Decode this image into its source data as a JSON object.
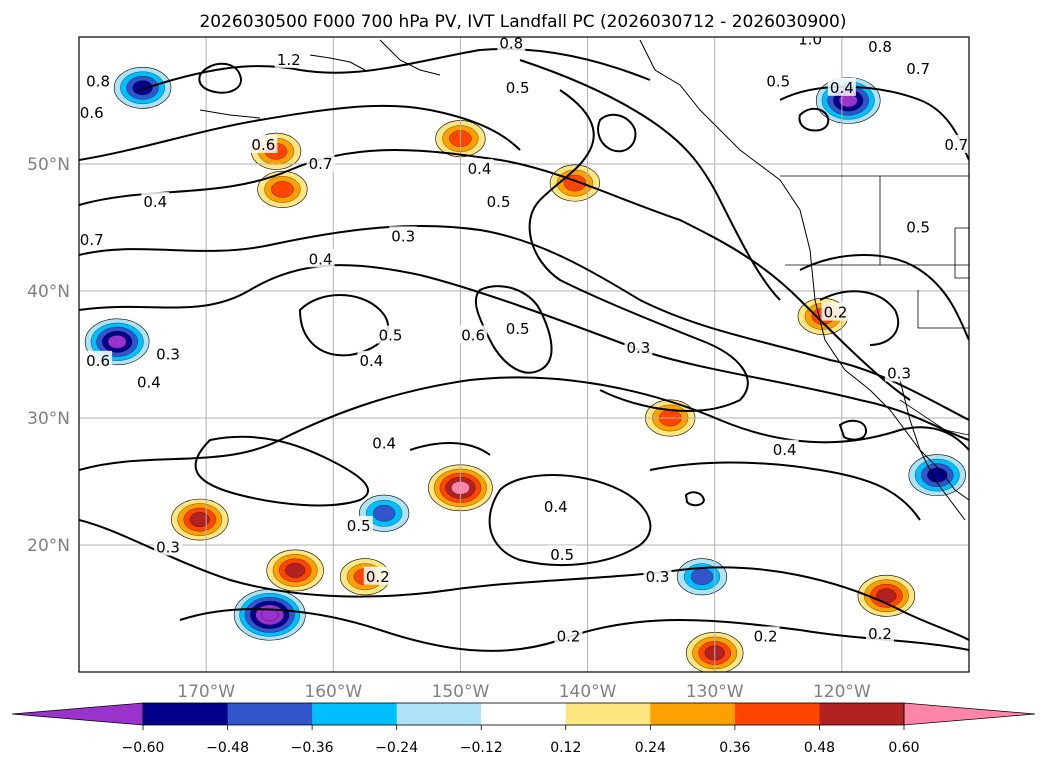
{
  "chart_data": {
    "type": "contour-map",
    "title": "2026030500 F000 700 hPa PV, IVT Landfall PC (2026030712 - 2026030900)",
    "lat_ticks": [
      {
        "value": 50,
        "label": "50°N"
      },
      {
        "value": 40,
        "label": "40°N"
      },
      {
        "value": 30,
        "label": "30°N"
      },
      {
        "value": 20,
        "label": "20°N"
      }
    ],
    "lon_ticks": [
      {
        "value": -170,
        "label": "170°W"
      },
      {
        "value": -160,
        "label": "160°W"
      },
      {
        "value": -150,
        "label": "150°W"
      },
      {
        "value": -140,
        "label": "140°W"
      },
      {
        "value": -130,
        "label": "130°W"
      },
      {
        "value": -120,
        "label": "120°W"
      }
    ],
    "lon_range": [
      -180,
      -110
    ],
    "lat_range": [
      10,
      60
    ],
    "colorbar": {
      "levels": [
        -0.72,
        -0.6,
        -0.48,
        -0.36,
        -0.24,
        -0.12,
        0.12,
        0.24,
        0.36,
        0.48,
        0.6,
        0.72
      ],
      "tick_labels": [
        "−0.60",
        "−0.48",
        "−0.36",
        "−0.24",
        "−0.12",
        "0.12",
        "0.24",
        "0.36",
        "0.48",
        "0.60"
      ],
      "colors": [
        "#9933cc",
        "#00008b",
        "#3355cc",
        "#00bfff",
        "#aee2f7",
        "#ffffff",
        "#ffe680",
        "#ffa000",
        "#ff4500",
        "#b22222",
        "#ff85a8"
      ],
      "extend": "both"
    },
    "contour_labels": [
      {
        "text": "1.2",
        "lon": -163.5,
        "lat": 58.2
      },
      {
        "text": "0.8",
        "lon": -146.0,
        "lat": 59.5
      },
      {
        "text": "0.8",
        "lon": -178.5,
        "lat": 56.5
      },
      {
        "text": "0.6",
        "lon": -179.0,
        "lat": 54.0
      },
      {
        "text": "0.7",
        "lon": -161.0,
        "lat": 50.0
      },
      {
        "text": "0.6",
        "lon": -165.5,
        "lat": 51.5
      },
      {
        "text": "0.4",
        "lon": -174.0,
        "lat": 47.0
      },
      {
        "text": "0.7",
        "lon": -179.0,
        "lat": 44.0
      },
      {
        "text": "0.4",
        "lon": -161.0,
        "lat": 42.5
      },
      {
        "text": "0.3",
        "lon": -154.5,
        "lat": 44.3
      },
      {
        "text": "0.4",
        "lon": -148.5,
        "lat": 49.6
      },
      {
        "text": "0.5",
        "lon": -147.0,
        "lat": 47.0
      },
      {
        "text": "0.5",
        "lon": -145.5,
        "lat": 56.0
      },
      {
        "text": "0.5",
        "lon": -155.5,
        "lat": 36.5
      },
      {
        "text": "0.4",
        "lon": -157.0,
        "lat": 34.5
      },
      {
        "text": "0.3",
        "lon": -173.0,
        "lat": 35.0
      },
      {
        "text": "0.4",
        "lon": -174.5,
        "lat": 32.8
      },
      {
        "text": "0.6",
        "lon": -178.5,
        "lat": 34.5
      },
      {
        "text": "0.6",
        "lon": -149.0,
        "lat": 36.5
      },
      {
        "text": "0.5",
        "lon": -145.5,
        "lat": 37.0
      },
      {
        "text": "0.3",
        "lon": -136.0,
        "lat": 35.5
      },
      {
        "text": "0.4",
        "lon": -156.0,
        "lat": 28.0
      },
      {
        "text": "0.5",
        "lon": -158.0,
        "lat": 21.5
      },
      {
        "text": "0.4",
        "lon": -142.5,
        "lat": 23.0
      },
      {
        "text": "0.5",
        "lon": -142.0,
        "lat": 19.2
      },
      {
        "text": "0.4",
        "lon": -124.5,
        "lat": 27.5
      },
      {
        "text": "0.3",
        "lon": -173.0,
        "lat": 19.8
      },
      {
        "text": "0.2",
        "lon": -156.5,
        "lat": 17.5
      },
      {
        "text": "0.3",
        "lon": -134.5,
        "lat": 17.5
      },
      {
        "text": "0.2",
        "lon": -141.5,
        "lat": 12.8
      },
      {
        "text": "0.2",
        "lon": -126.0,
        "lat": 12.8
      },
      {
        "text": "0.2",
        "lon": -117.0,
        "lat": 13.0
      },
      {
        "text": "0.5",
        "lon": -125.0,
        "lat": 56.5
      },
      {
        "text": "0.4",
        "lon": -120.0,
        "lat": 56.0
      },
      {
        "text": "0.8",
        "lon": -117.0,
        "lat": 59.2
      },
      {
        "text": "0.7",
        "lon": -114.0,
        "lat": 57.5
      },
      {
        "text": "1.0",
        "lon": -122.5,
        "lat": 59.8
      },
      {
        "text": "0.5",
        "lon": -114.0,
        "lat": 45.0
      },
      {
        "text": "0.2",
        "lon": -120.5,
        "lat": 38.3
      },
      {
        "text": "0.3",
        "lon": -115.5,
        "lat": 33.5
      },
      {
        "text": "0.7",
        "lon": -111.0,
        "lat": 51.5
      }
    ],
    "positive_anomalies": [
      {
        "lon": -164.5,
        "lat": 51.0,
        "peak": 0.36
      },
      {
        "lon": -164.0,
        "lat": 48.0,
        "peak": 0.36
      },
      {
        "lon": -150.0,
        "lat": 52.0,
        "peak": 0.36
      },
      {
        "lon": -141.0,
        "lat": 48.5,
        "peak": 0.36
      },
      {
        "lon": -150.0,
        "lat": 24.5,
        "peak": 0.6
      },
      {
        "lon": -170.5,
        "lat": 22.0,
        "peak": 0.48
      },
      {
        "lon": -163.0,
        "lat": 18.0,
        "peak": 0.48
      },
      {
        "lon": -157.5,
        "lat": 17.5,
        "peak": 0.36
      },
      {
        "lon": -130.0,
        "lat": 11.5,
        "peak": 0.48
      },
      {
        "lon": -116.5,
        "lat": 16.0,
        "peak": 0.48
      },
      {
        "lon": -121.5,
        "lat": 38.0,
        "peak": 0.36
      },
      {
        "lon": -133.5,
        "lat": 30.0,
        "peak": 0.36
      }
    ],
    "negative_anomalies": [
      {
        "lon": -175.0,
        "lat": 56.0,
        "peak": -0.48
      },
      {
        "lon": -177.0,
        "lat": 36.0,
        "peak": -0.6
      },
      {
        "lon": -165.0,
        "lat": 14.5,
        "peak": -0.72
      },
      {
        "lon": -156.0,
        "lat": 22.5,
        "peak": -0.36
      },
      {
        "lon": -119.5,
        "lat": 55.0,
        "peak": -0.6
      },
      {
        "lon": -112.5,
        "lat": 25.5,
        "peak": -0.48
      },
      {
        "lon": -131.0,
        "lat": 17.5,
        "peak": -0.36
      }
    ]
  }
}
